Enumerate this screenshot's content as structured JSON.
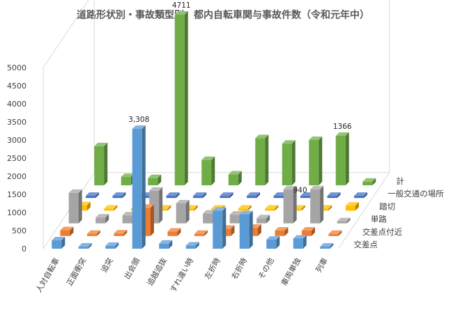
{
  "chart_data": {
    "type": "bar",
    "subtype": "3d-column",
    "title": "道路形状別・事故類型別　都内自転車関与事故件数（令和元年中）",
    "categories": [
      "人対自転車",
      "正面衝突",
      "追突",
      "出会頭",
      "追越追抜",
      "すれ違い時",
      "左折時",
      "右折時",
      "その他",
      "車両単独",
      "列車"
    ],
    "series": [
      {
        "name": "交差点",
        "color": "#5b9bd5",
        "values": [
          230,
          60,
          80,
          3308,
          140,
          90,
          1050,
          950,
          250,
          280,
          0
        ]
      },
      {
        "name": "交差点付近",
        "color": "#ed7d31",
        "values": [
          160,
          60,
          70,
          780,
          120,
          60,
          200,
          230,
          150,
          150,
          0
        ]
      },
      {
        "name": "単路",
        "color": "#a5a5a5",
        "values": [
          840,
          160,
          220,
          900,
          550,
          270,
          240,
          140,
          940,
          940,
          0
        ]
      },
      {
        "name": "踏切",
        "color": "#ffc000",
        "values": [
          150,
          20,
          20,
          20,
          20,
          20,
          20,
          20,
          20,
          20,
          140
        ]
      },
      {
        "name": "一般交通の場所",
        "color": "#4472c4",
        "values": [
          60,
          60,
          60,
          60,
          60,
          60,
          60,
          60,
          60,
          60,
          60
        ]
      },
      {
        "name": "計",
        "color": "#70ad47",
        "values": [
          1080,
          230,
          200,
          4711,
          700,
          300,
          1300,
          1150,
          1250,
          1366,
          100
        ]
      }
    ],
    "data_labels": [
      {
        "series": "交差点",
        "category": "出会頭",
        "text": "3,308"
      },
      {
        "series": "計",
        "category": "出会頭",
        "text": "4711"
      },
      {
        "series": "計",
        "category": "車両単独",
        "text": "1366"
      },
      {
        "series": "単路",
        "category": "車両単独",
        "text": "940"
      }
    ],
    "y_ticks": [
      "0",
      "500",
      "1000",
      "1500",
      "2000",
      "2500",
      "3000",
      "3500",
      "4000",
      "4500",
      "5000"
    ],
    "ylim": [
      0,
      5000
    ],
    "grid": false,
    "legend": "none"
  }
}
